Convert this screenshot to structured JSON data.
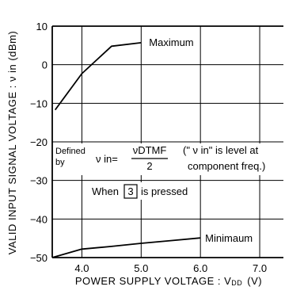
{
  "chart_data": {
    "type": "line",
    "xlabel": "POWER SUPPLY  VOLTAGE : V",
    "xlabel_sub": "DD",
    "xlabel_unit": "(V)",
    "ylabel": "VALID  INPUT  SIGNAL  VOLTAGE : ν in  (dBm)",
    "xlim": [
      3.5,
      7.4
    ],
    "ylim": [
      -50,
      10
    ],
    "x_ticks": [
      4.0,
      5.0,
      6.0,
      7.0
    ],
    "x_tick_labels": [
      "4.0",
      "5.0",
      "6.0",
      "7.0"
    ],
    "y_ticks": [
      10,
      0,
      -10,
      -20,
      -30,
      -40,
      -50
    ],
    "y_tick_labels": [
      "10",
      "0",
      "−10",
      "−20",
      "−30",
      "−40",
      "−50"
    ],
    "grid": true,
    "series": [
      {
        "name": "Maximum",
        "x": [
          3.55,
          4.0,
          4.5,
          5.0
        ],
        "y": [
          -11.7,
          -2.3,
          4.8,
          5.7
        ]
      },
      {
        "name": "Minimaum",
        "x": [
          3.5,
          4.0,
          4.5,
          5.0,
          5.5,
          6.0
        ],
        "y": [
          -50.0,
          -47.8,
          -47.1,
          -46.3,
          -45.6,
          -44.9
        ]
      }
    ],
    "annotations": {
      "defined_prefix_1": "Defined",
      "defined_prefix_2": "by",
      "formula_lhs": "ν in=",
      "formula_num": "νDTMF",
      "formula_den": "2",
      "note_line1": "(\" ν in\" is level at",
      "note_line2": "component freq.)",
      "when_prefix": "When",
      "when_key": "3",
      "when_suffix": "is pressed"
    }
  }
}
